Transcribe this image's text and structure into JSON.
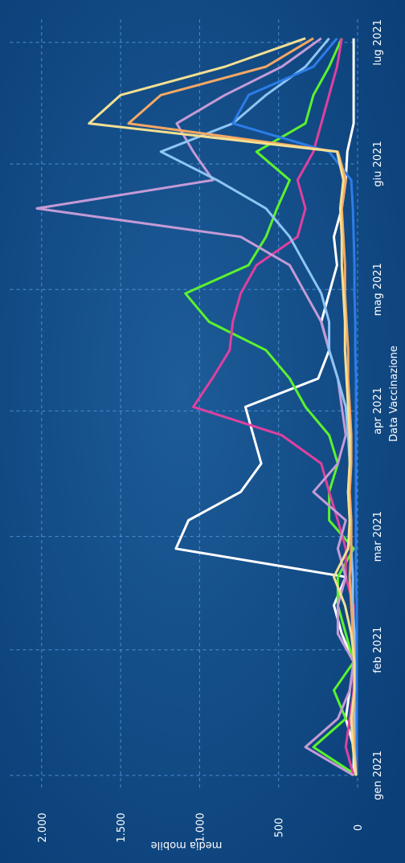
{
  "chart_data": {
    "type": "line",
    "x_label": "Data Vaccinazione",
    "y_label": "media mobile",
    "x": [
      0,
      7,
      14,
      21,
      28,
      35,
      42,
      49,
      56,
      63,
      70,
      77,
      84,
      91,
      98,
      105,
      112,
      119,
      126,
      133,
      140,
      147,
      154,
      161,
      168,
      175,
      182
    ],
    "xlim": [
      -3,
      187
    ],
    "xticks": [
      {
        "value": 0,
        "label": "gen 2021"
      },
      {
        "value": 31,
        "label": "feb 2021"
      },
      {
        "value": 59,
        "label": "mar 2021"
      },
      {
        "value": 90,
        "label": "apr 2021"
      },
      {
        "value": 120,
        "label": "mag 2021"
      },
      {
        "value": 151,
        "label": "giu 2021"
      },
      {
        "value": 181,
        "label": "lug 2021"
      }
    ],
    "ylim": [
      0,
      2200
    ],
    "yticks": [
      0,
      500,
      {
        "value": 1000,
        "label": "1.000"
      },
      {
        "value": 1500,
        "label": "1.500"
      },
      {
        "value": 2000,
        "label": "2.000"
      }
    ],
    "grid": true,
    "series": [
      {
        "color": "#ffffff",
        "values": [
          25,
          25,
          75,
          50,
          25,
          100,
          150,
          75,
          1150,
          1070,
          740,
          610,
          660,
          710,
          250,
          180,
          230,
          180,
          130,
          150,
          100,
          75,
          65,
          25,
          25,
          25,
          25
        ]
      },
      {
        "color": "#5cf22e",
        "values": [
          5,
          280,
          75,
          150,
          25,
          75,
          125,
          125,
          25,
          180,
          180,
          125,
          180,
          330,
          430,
          580,
          940,
          1090,
          690,
          580,
          510,
          430,
          640,
          330,
          280,
          180,
          100
        ]
      },
      {
        "color": "#e0409f",
        "values": [
          25,
          75,
          50,
          25,
          25,
          25,
          25,
          75,
          75,
          125,
          180,
          230,
          480,
          1040,
          920,
          810,
          790,
          740,
          640,
          380,
          330,
          380,
          280,
          230,
          180,
          130,
          100
        ]
      },
      {
        "color": "#c49bd6",
        "values": [
          25,
          330,
          125,
          50,
          25,
          125,
          125,
          75,
          125,
          75,
          280,
          125,
          75,
          100,
          125,
          180,
          230,
          330,
          430,
          740,
          2030,
          915,
          1040,
          1145,
          840,
          480,
          230
        ]
      },
      {
        "color": "#8ec5f5",
        "values": [
          10,
          20,
          20,
          15,
          15,
          20,
          30,
          30,
          40,
          50,
          60,
          50,
          60,
          75,
          125,
          180,
          180,
          230,
          330,
          430,
          580,
          890,
          1245,
          790,
          580,
          330,
          180
        ]
      },
      {
        "color": "#2b7de9",
        "values": [
          5,
          5,
          5,
          5,
          5,
          5,
          5,
          10,
          10,
          10,
          10,
          10,
          10,
          10,
          10,
          15,
          15,
          20,
          20,
          25,
          30,
          40,
          180,
          790,
          690,
          280,
          130
        ]
      },
      {
        "color": "#f5a864",
        "values": [
          10,
          20,
          30,
          20,
          20,
          30,
          40,
          50,
          40,
          40,
          50,
          40,
          40,
          50,
          60,
          60,
          70,
          80,
          80,
          90,
          100,
          75,
          125,
          1450,
          1245,
          580,
          280
        ]
      },
      {
        "color": "#f3df92",
        "values": [
          10,
          30,
          40,
          20,
          20,
          40,
          80,
          150,
          60,
          50,
          60,
          50,
          50,
          60,
          70,
          80,
          80,
          90,
          100,
          100,
          110,
          90,
          130,
          1700,
          1500,
          840,
          330
        ]
      }
    ]
  }
}
